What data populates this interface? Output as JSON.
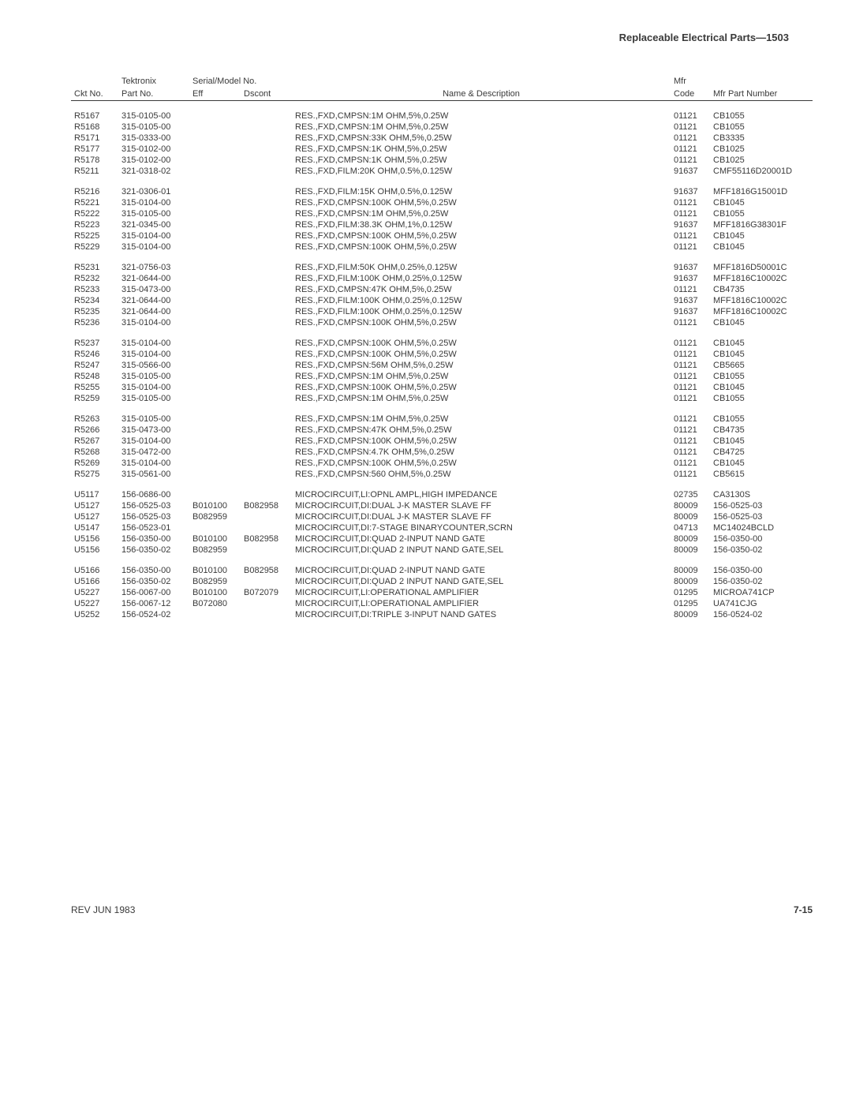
{
  "header": "Replaceable Electrical Parts—1503",
  "columns": {
    "ckt": "Ckt No.",
    "tek_part_top": "Tektronix",
    "tek_part": "Part No.",
    "serial_top": "Serial/Model No.",
    "eff": "Eff",
    "dscont": "Dscont",
    "desc": "Name & Description",
    "mfr_top": "Mfr",
    "mfr": "Code",
    "mfrpn": "Mfr Part Number"
  },
  "groups": [
    [
      {
        "ckt": "R5167",
        "part": "315-0105-00",
        "eff": "",
        "dscont": "",
        "desc": "RES.,FXD,CMPSN:1M OHM,5%,0.25W",
        "mfr": "01121",
        "mfrpn": "CB1055"
      },
      {
        "ckt": "R5168",
        "part": "315-0105-00",
        "eff": "",
        "dscont": "",
        "desc": "RES.,FXD,CMPSN:1M OHM,5%,0.25W",
        "mfr": "01121",
        "mfrpn": "CB1055"
      },
      {
        "ckt": "R5171",
        "part": "315-0333-00",
        "eff": "",
        "dscont": "",
        "desc": "RES.,FXD,CMPSN:33K OHM,5%,0.25W",
        "mfr": "01121",
        "mfrpn": "CB3335"
      },
      {
        "ckt": "R5177",
        "part": "315-0102-00",
        "eff": "",
        "dscont": "",
        "desc": "RES.,FXD,CMPSN:1K OHM,5%,0.25W",
        "mfr": "01121",
        "mfrpn": "CB1025"
      },
      {
        "ckt": "R5178",
        "part": "315-0102-00",
        "eff": "",
        "dscont": "",
        "desc": "RES.,FXD,CMPSN:1K OHM,5%,0.25W",
        "mfr": "01121",
        "mfrpn": "CB1025"
      },
      {
        "ckt": "R5211",
        "part": "321-0318-02",
        "eff": "",
        "dscont": "",
        "desc": "RES.,FXD,FILM:20K OHM,0.5%,0.125W",
        "mfr": "91637",
        "mfrpn": "CMF55116D20001D"
      }
    ],
    [
      {
        "ckt": "R5216",
        "part": "321-0306-01",
        "eff": "",
        "dscont": "",
        "desc": "RES.,FXD,FILM:15K OHM,0.5%,0.125W",
        "mfr": "91637",
        "mfrpn": "MFF1816G15001D"
      },
      {
        "ckt": "R5221",
        "part": "315-0104-00",
        "eff": "",
        "dscont": "",
        "desc": "RES.,FXD,CMPSN:100K OHM,5%,0.25W",
        "mfr": "01121",
        "mfrpn": "CB1045"
      },
      {
        "ckt": "R5222",
        "part": "315-0105-00",
        "eff": "",
        "dscont": "",
        "desc": "RES.,FXD,CMPSN:1M OHM,5%,0.25W",
        "mfr": "01121",
        "mfrpn": "CB1055"
      },
      {
        "ckt": "R5223",
        "part": "321-0345-00",
        "eff": "",
        "dscont": "",
        "desc": "RES.,FXD,FILM:38.3K OHM,1%,0.125W",
        "mfr": "91637",
        "mfrpn": "MFF1816G38301F"
      },
      {
        "ckt": "R5225",
        "part": "315-0104-00",
        "eff": "",
        "dscont": "",
        "desc": "RES.,FXD,CMPSN:100K OHM,5%,0.25W",
        "mfr": "01121",
        "mfrpn": "CB1045"
      },
      {
        "ckt": "R5229",
        "part": "315-0104-00",
        "eff": "",
        "dscont": "",
        "desc": "RES.,FXD,CMPSN:100K OHM,5%,0.25W",
        "mfr": "01121",
        "mfrpn": "CB1045"
      }
    ],
    [
      {
        "ckt": "R5231",
        "part": "321-0756-03",
        "eff": "",
        "dscont": "",
        "desc": "RES.,FXD,FILM:50K OHM,0.25%,0.125W",
        "mfr": "91637",
        "mfrpn": "MFF1816D50001C"
      },
      {
        "ckt": "R5232",
        "part": "321-0644-00",
        "eff": "",
        "dscont": "",
        "desc": "RES.,FXD,FILM:100K OHM,0.25%,0.125W",
        "mfr": "91637",
        "mfrpn": "MFF1816C10002C"
      },
      {
        "ckt": "R5233",
        "part": "315-0473-00",
        "eff": "",
        "dscont": "",
        "desc": "RES.,FXD,CMPSN:47K OHM,5%,0.25W",
        "mfr": "01121",
        "mfrpn": "CB4735"
      },
      {
        "ckt": "R5234",
        "part": "321-0644-00",
        "eff": "",
        "dscont": "",
        "desc": "RES.,FXD,FILM:100K OHM,0.25%,0.125W",
        "mfr": "91637",
        "mfrpn": "MFF1816C10002C"
      },
      {
        "ckt": "R5235",
        "part": "321-0644-00",
        "eff": "",
        "dscont": "",
        "desc": "RES.,FXD,FILM:100K OHM,0.25%,0.125W",
        "mfr": "91637",
        "mfrpn": "MFF1816C10002C"
      },
      {
        "ckt": "R5236",
        "part": "315-0104-00",
        "eff": "",
        "dscont": "",
        "desc": "RES.,FXD,CMPSN:100K OHM,5%,0.25W",
        "mfr": "01121",
        "mfrpn": "CB1045"
      }
    ],
    [
      {
        "ckt": "R5237",
        "part": "315-0104-00",
        "eff": "",
        "dscont": "",
        "desc": "RES.,FXD,CMPSN:100K OHM,5%,0.25W",
        "mfr": "01121",
        "mfrpn": "CB1045"
      },
      {
        "ckt": "R5246",
        "part": "315-0104-00",
        "eff": "",
        "dscont": "",
        "desc": "RES.,FXD,CMPSN:100K OHM,5%,0.25W",
        "mfr": "01121",
        "mfrpn": "CB1045"
      },
      {
        "ckt": "R5247",
        "part": "315-0566-00",
        "eff": "",
        "dscont": "",
        "desc": "RES.,FXD,CMPSN:56M OHM,5%,0.25W",
        "mfr": "01121",
        "mfrpn": "CB5665"
      },
      {
        "ckt": "R5248",
        "part": "315-0105-00",
        "eff": "",
        "dscont": "",
        "desc": "RES.,FXD,CMPSN:1M OHM,5%,0.25W",
        "mfr": "01121",
        "mfrpn": "CB1055"
      },
      {
        "ckt": "R5255",
        "part": "315-0104-00",
        "eff": "",
        "dscont": "",
        "desc": "RES.,FXD,CMPSN:100K OHM,5%,0.25W",
        "mfr": "01121",
        "mfrpn": "CB1045"
      },
      {
        "ckt": "R5259",
        "part": "315-0105-00",
        "eff": "",
        "dscont": "",
        "desc": "RES.,FXD,CMPSN:1M OHM,5%,0.25W",
        "mfr": "01121",
        "mfrpn": "CB1055"
      }
    ],
    [
      {
        "ckt": "R5263",
        "part": "315-0105-00",
        "eff": "",
        "dscont": "",
        "desc": "RES.,FXD,CMPSN:1M OHM,5%,0.25W",
        "mfr": "01121",
        "mfrpn": "CB1055"
      },
      {
        "ckt": "R5266",
        "part": "315-0473-00",
        "eff": "",
        "dscont": "",
        "desc": "RES.,FXD,CMPSN:47K OHM,5%,0.25W",
        "mfr": "01121",
        "mfrpn": "CB4735"
      },
      {
        "ckt": "R5267",
        "part": "315-0104-00",
        "eff": "",
        "dscont": "",
        "desc": "RES.,FXD,CMPSN:100K OHM,5%,0.25W",
        "mfr": "01121",
        "mfrpn": "CB1045"
      },
      {
        "ckt": "R5268",
        "part": "315-0472-00",
        "eff": "",
        "dscont": "",
        "desc": "RES.,FXD,CMPSN:4.7K OHM,5%,0.25W",
        "mfr": "01121",
        "mfrpn": "CB4725"
      },
      {
        "ckt": "R5269",
        "part": "315-0104-00",
        "eff": "",
        "dscont": "",
        "desc": "RES.,FXD,CMPSN:100K OHM,5%,0.25W",
        "mfr": "01121",
        "mfrpn": "CB1045"
      },
      {
        "ckt": "R5275",
        "part": "315-0561-00",
        "eff": "",
        "dscont": "",
        "desc": "RES.,FXD,CMPSN:560 OHM,5%,0.25W",
        "mfr": "01121",
        "mfrpn": "CB5615"
      }
    ],
    [
      {
        "ckt": "U5117",
        "part": "156-0686-00",
        "eff": "",
        "dscont": "",
        "desc": "MICROCIRCUIT,LI:OPNL AMPL,HIGH IMPEDANCE",
        "mfr": "02735",
        "mfrpn": "CA3130S"
      },
      {
        "ckt": "U5127",
        "part": "156-0525-03",
        "eff": "B010100",
        "dscont": "B082958",
        "desc": "MICROCIRCUIT,DI:DUAL J-K MASTER SLAVE FF",
        "mfr": "80009",
        "mfrpn": "156-0525-03"
      },
      {
        "ckt": "U5127",
        "part": "156-0525-03",
        "eff": "B082959",
        "dscont": "",
        "desc": "MICROCIRCUIT,DI:DUAL J-K MASTER SLAVE FF",
        "mfr": "80009",
        "mfrpn": "156-0525-03"
      },
      {
        "ckt": "U5147",
        "part": "156-0523-01",
        "eff": "",
        "dscont": "",
        "desc": "MICROCIRCUIT,DI:7-STAGE BINARYCOUNTER,SCRN",
        "mfr": "04713",
        "mfrpn": "MC14024BCLD"
      },
      {
        "ckt": "U5156",
        "part": "156-0350-00",
        "eff": "B010100",
        "dscont": "B082958",
        "desc": "MICROCIRCUIT,DI:QUAD 2-INPUT NAND GATE",
        "mfr": "80009",
        "mfrpn": "156-0350-00"
      },
      {
        "ckt": "U5156",
        "part": "156-0350-02",
        "eff": "B082959",
        "dscont": "",
        "desc": "MICROCIRCUIT,DI:QUAD 2 INPUT NAND GATE,SEL",
        "mfr": "80009",
        "mfrpn": "156-0350-02"
      }
    ],
    [
      {
        "ckt": "U5166",
        "part": "156-0350-00",
        "eff": "B010100",
        "dscont": "B082958",
        "desc": "MICROCIRCUIT,DI:QUAD 2-INPUT NAND GATE",
        "mfr": "80009",
        "mfrpn": "156-0350-00"
      },
      {
        "ckt": "U5166",
        "part": "156-0350-02",
        "eff": "B082959",
        "dscont": "",
        "desc": "MICROCIRCUIT,DI:QUAD 2 INPUT NAND GATE,SEL",
        "mfr": "80009",
        "mfrpn": "156-0350-02"
      },
      {
        "ckt": "U5227",
        "part": "156-0067-00",
        "eff": "B010100",
        "dscont": "B072079",
        "desc": "MICROCIRCUIT,LI:OPERATIONAL AMPLIFIER",
        "mfr": "01295",
        "mfrpn": "MICROA741CP"
      },
      {
        "ckt": "U5227",
        "part": "156-0067-12",
        "eff": "B072080",
        "dscont": "",
        "desc": "MICROCIRCUIT,LI:OPERATIONAL AMPLIFIER",
        "mfr": "01295",
        "mfrpn": "UA741CJG"
      },
      {
        "ckt": "U5252",
        "part": "156-0524-02",
        "eff": "",
        "dscont": "",
        "desc": "MICROCIRCUIT,DI:TRIPLE 3-INPUT NAND GATES",
        "mfr": "80009",
        "mfrpn": "156-0524-02"
      }
    ]
  ],
  "footer": {
    "left": "REV JUN 1983",
    "right": "7-15"
  }
}
